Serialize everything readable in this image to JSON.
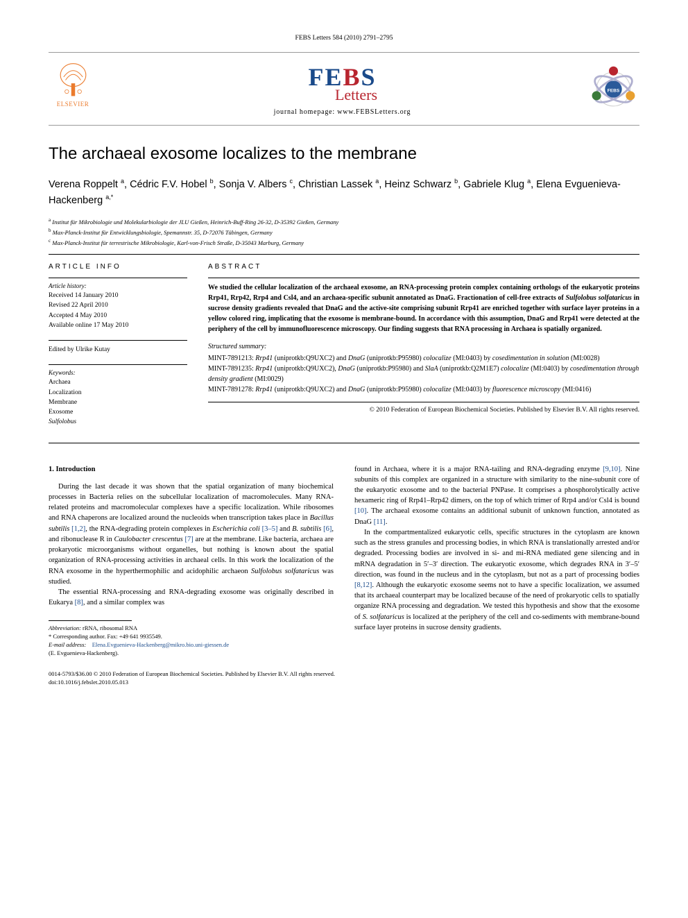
{
  "header_citation": "FEBS Letters 584 (2010) 2791–2795",
  "publisher_name": "ELSEVIER",
  "journal_logo_letters": [
    "F",
    "E",
    "B",
    "S"
  ],
  "journal_logo_sub": "Letters",
  "journal_homepage_label": "journal homepage: www.FEBSLetters.org",
  "title": "The archaeal exosome localizes to the membrane",
  "authors_html": "Verena Roppelt <sup>a</sup>, Cédric F.V. Hobel <sup>b</sup>, Sonja V. Albers <sup>c</sup>, Christian Lassek <sup>a</sup>, Heinz Schwarz <sup>b</sup>, Gabriele Klug <sup>a</sup>, Elena Evguenieva-Hackenberg <sup>a,*</sup>",
  "affiliations": [
    {
      "sup": "a",
      "text": "Institut für Mikrobiologie und Molekularbiologie der JLU Gießen, Heinrich-Buff-Ring 26-32, D-35392 Gießen, Germany"
    },
    {
      "sup": "b",
      "text": "Max-Planck-Institut für Entwicklungsbiologie, Spemannstr. 35, D-72076 Tübingen, Germany"
    },
    {
      "sup": "c",
      "text": "Max-Planck-Institut für terrestrische Mikrobiologie, Karl-von-Frisch Straße, D-35043 Marburg, Germany"
    }
  ],
  "article_info_heading": "ARTICLE INFO",
  "abstract_heading": "ABSTRACT",
  "history_label": "Article history:",
  "history_lines": [
    "Received 14 January 2010",
    "Revised 22 April 2010",
    "Accepted 4 May 2010",
    "Available online 17 May 2010"
  ],
  "edited_by": "Edited by Ulrike Kutay",
  "keywords_label": "Keywords:",
  "keywords": [
    "Archaea",
    "Localization",
    "Membrane",
    "Exosome",
    "Sulfolobus"
  ],
  "abstract": "We studied the cellular localization of the archaeal exosome, an RNA-processing protein complex containing orthologs of the eukaryotic proteins Rrp41, Rrp42, Rrp4 and Csl4, and an archaea-specific subunit annotated as DnaG. Fractionation of cell-free extracts of <em>Sulfolobus solfataricus</em> in sucrose density gradients revealed that DnaG and the active-site comprising subunit Rrp41 are enriched together with surface layer proteins in a yellow colored ring, implicating that the exosome is membrane-bound. In accordance with this assumption, DnaG and Rrp41 were detected at the periphery of the cell by immunofluorescence microscopy. Our finding suggests that RNA processing in Archaea is spatially organized.",
  "structured_summary_label": "Structured summary:",
  "structured_summary": [
    "MINT-7891213: <em>Rrp41</em> (uniprotkb:Q9UXC2) and <em>DnaG</em> (uniprotkb:P95980) <em>colocalize</em> (MI:0403) by <em>cosedimentation in solution</em> (MI:0028)",
    "MINT-7891235: <em>Rrp41</em> (uniprotkb:Q9UXC2), <em>DnaG</em> (uniprotkb:P95980) and <em>SlaA</em> (uniprotkb:Q2M1E7) <em>colocalize</em> (MI:0403) by <em>cosedimentation through density gradient</em> (MI:0029)",
    "MINT-7891278: <em>Rrp41</em> (uniprotkb:Q9UXC2) and <em>DnaG</em> (uniprotkb:P95980) <em>colocalize</em> (MI:0403) by <em>fluorescence microscopy</em> (MI:0416)"
  ],
  "copyright": "© 2010 Federation of European Biochemical Societies. Published by Elsevier B.V. All rights reserved.",
  "section_1_heading": "1. Introduction",
  "col1_paras": [
    "During the last decade it was shown that the spatial organization of many biochemical processes in Bacteria relies on the subcellular localization of macromolecules. Many RNA-related proteins and macromolecular complexes have a specific localization. While ribosomes and RNA chaperons are localized around the nucleoids when transcription takes place in <em>Bacillus subtilis</em> <a class='ref'>[1,2]</a>, the RNA-degrading protein complexes in <em>Escherichia coli</em> <a class='ref'>[3–5]</a> and <em>B. subtilis</em> <a class='ref'>[6]</a>, and ribonuclease R in <em>Caulobacter crescentus</em> <a class='ref'>[7]</a> are at the membrane. Like bacteria, archaea are prokaryotic microorganisms without organelles, but nothing is known about the spatial organization of RNA-processing activities in archaeal cells. In this work the localization of the RNA exosome in the hyperthermophilic and acidophilic archaeon <em>Sulfolobus solfataricus</em> was studied.",
    "The essential RNA-processing and RNA-degrading exosome was originally described in Eukarya <a class='ref'>[8]</a>, and a similar complex was"
  ],
  "col2_paras": [
    "found in Archaea, where it is a major RNA-tailing and RNA-degrading enzyme <a class='ref'>[9,10]</a>. Nine subunits of this complex are organized in a structure with similarity to the nine-subunit core of the eukaryotic exosome and to the bacterial PNPase. It comprises a phosphorolytically active hexameric ring of Rrp41–Rrp42 dimers, on the top of which trimer of Rrp4 and/or Csl4 is bound <a class='ref'>[10]</a>. The archaeal exosome contains an additional subunit of unknown function, annotated as DnaG <a class='ref'>[11]</a>.",
    "In the compartmentalized eukaryotic cells, specific structures in the cytoplasm are known such as the stress granules and processing bodies, in which RNA is translationally arrested and/or degraded. Processing bodies are involved in si- and mi-RNA mediated gene silencing and in mRNA degradation in 5′–3′ direction. The eukaryotic exosome, which degrades RNA in 3′–5′ direction, was found in the nucleus and in the cytoplasm, but not as a part of processing bodies <a class='ref'>[8,12]</a>. Although the eukaryotic exosome seems not to have a specific localization, we assumed that its archaeal counterpart may be localized because of the need of prokaryotic cells to spatially organize RNA processing and degradation. We tested this hypothesis and show that the exosome of <em>S. solfataricus</em> is localized at the periphery of the cell and co-sediments with membrane-bound surface layer proteins in sucrose density gradients."
  ],
  "abbrev_label": "Abbreviation:",
  "abbrev_text": "rRNA, ribosomal RNA",
  "corresponding_label": "* Corresponding author. Fax: +49 641 9935549.",
  "email_label": "E-mail address:",
  "email": "Elena.Evguenieva-Hackenberg@mikro.bio.uni-giessen.de",
  "email_person": "(E. Evguenieva-Hackenberg).",
  "doi_line1": "0014-5793/$36.00 © 2010 Federation of European Biochemical Societies. Published by Elsevier B.V. All rights reserved.",
  "doi_line2": "doi:10.1016/j.febslet.2010.05.013",
  "colors": {
    "elsevier_orange": "#eb7b2d",
    "febs_blue": "#1a4a8a",
    "febs_red": "#b8252f",
    "link_blue": "#1a4a8a"
  }
}
